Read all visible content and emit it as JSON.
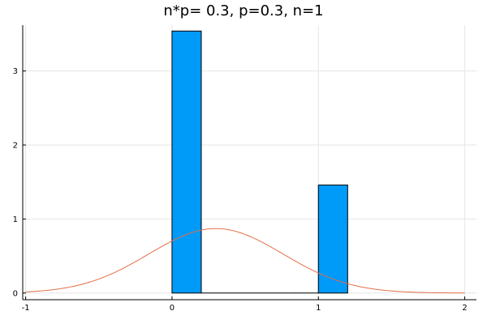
{
  "chart_data": {
    "type": "bar",
    "title": "n*p= 0.3, p=0.3, n=1",
    "xlabel": "",
    "ylabel": "",
    "xlim": [
      -1.02,
      2.08
    ],
    "ylim": [
      -0.09,
      3.62
    ],
    "x_ticks": [
      -1,
      0,
      1,
      2
    ],
    "y_ticks": [
      0,
      1,
      2,
      3
    ],
    "x_tick_labels": [
      "-1",
      "0",
      "1",
      "2"
    ],
    "y_tick_labels": [
      "0",
      "1",
      "2",
      "3"
    ],
    "grid": true,
    "legend": "none",
    "bar_color": "#009af9",
    "curve_color": "#e26f46",
    "bins": [
      {
        "x0": 0.0,
        "x1": 0.2,
        "height": 3.54
      },
      {
        "x0": 0.2,
        "x1": 0.4,
        "height": 0.0
      },
      {
        "x0": 0.4,
        "x1": 0.6,
        "height": 0.0
      },
      {
        "x0": 0.6,
        "x1": 0.8,
        "height": 0.0
      },
      {
        "x0": 0.8,
        "x1": 1.0,
        "height": 0.0
      },
      {
        "x0": 1.0,
        "x1": 1.2,
        "height": 1.46
      }
    ],
    "curve": {
      "type": "normal_pdf",
      "mean": 0.3,
      "std": 0.458,
      "x_range": [
        -1.0,
        2.0
      ]
    }
  }
}
